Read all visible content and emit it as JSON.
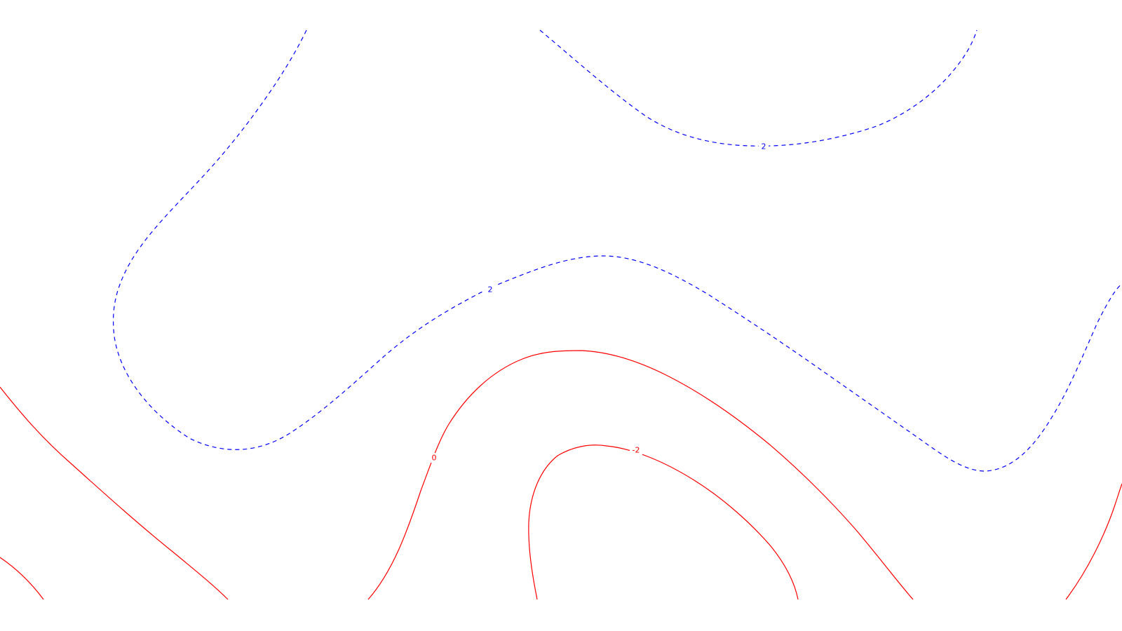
{
  "chart_data": {
    "type": "contour",
    "colors": {
      "positive": "#0000ff",
      "nonpositive": "#ff0000",
      "background": "#ffffff"
    },
    "line_styles": {
      "positive": "dashed",
      "nonpositive": "solid"
    },
    "levels": [
      {
        "value": 2,
        "label": "2",
        "color": "#0000ff",
        "style": "dashed"
      },
      {
        "value": 0,
        "label": "0",
        "color": "#ff0000",
        "style": "solid"
      },
      {
        "value": -2,
        "label": "-2",
        "color": "#ff0000",
        "style": "solid"
      }
    ],
    "contour_labels": [
      "2",
      "2",
      "0",
      "-2"
    ],
    "grid": false,
    "axes_visible": false,
    "title": "",
    "xlabel": "",
    "ylabel": ""
  }
}
